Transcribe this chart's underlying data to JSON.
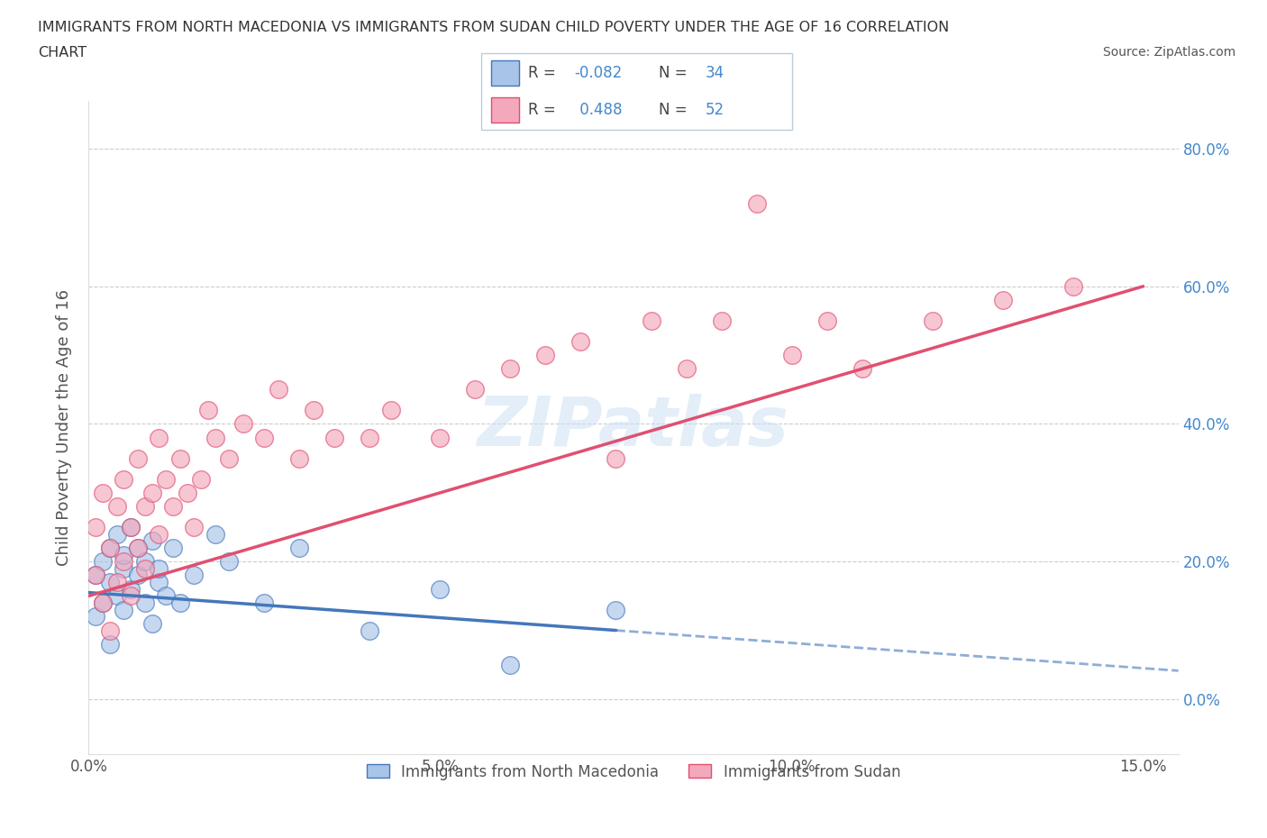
{
  "title_line1": "IMMIGRANTS FROM NORTH MACEDONIA VS IMMIGRANTS FROM SUDAN CHILD POVERTY UNDER THE AGE OF 16 CORRELATION",
  "title_line2": "CHART",
  "source": "Source: ZipAtlas.com",
  "ylabel": "Child Poverty Under the Age of 16",
  "legend_label1": "Immigrants from North Macedonia",
  "legend_label2": "Immigrants from Sudan",
  "R1": -0.082,
  "N1": 34,
  "R2": 0.488,
  "N2": 52,
  "color1": "#A8C4E8",
  "color2": "#F4A8BC",
  "trend1_color": "#4477BB",
  "trend2_color": "#E05070",
  "xlim_min": 0.0,
  "xlim_max": 0.155,
  "ylim_min": -0.08,
  "ylim_max": 0.87,
  "ytick_vals": [
    0.0,
    0.2,
    0.4,
    0.6,
    0.8
  ],
  "ytick_labels_right": [
    "0.0%",
    "20.0%",
    "40.0%",
    "60.0%",
    "80.0%"
  ],
  "xtick_vals": [
    0.0,
    0.05,
    0.1,
    0.15
  ],
  "xtick_labels": [
    "0.0%",
    "5.0%",
    "10.0%",
    "15.0%"
  ],
  "watermark": "ZIPatlas",
  "north_macedonia_x": [
    0.001,
    0.001,
    0.002,
    0.002,
    0.003,
    0.003,
    0.003,
    0.004,
    0.004,
    0.005,
    0.005,
    0.005,
    0.006,
    0.006,
    0.007,
    0.007,
    0.008,
    0.008,
    0.009,
    0.009,
    0.01,
    0.01,
    0.011,
    0.012,
    0.013,
    0.015,
    0.018,
    0.02,
    0.025,
    0.03,
    0.04,
    0.05,
    0.06,
    0.075
  ],
  "north_macedonia_y": [
    0.12,
    0.18,
    0.2,
    0.14,
    0.22,
    0.17,
    0.08,
    0.24,
    0.15,
    0.19,
    0.13,
    0.21,
    0.16,
    0.25,
    0.18,
    0.22,
    0.14,
    0.2,
    0.23,
    0.11,
    0.17,
    0.19,
    0.15,
    0.22,
    0.14,
    0.18,
    0.24,
    0.2,
    0.14,
    0.22,
    0.1,
    0.16,
    0.05,
    0.13
  ],
  "sudan_x": [
    0.001,
    0.001,
    0.002,
    0.002,
    0.003,
    0.003,
    0.004,
    0.004,
    0.005,
    0.005,
    0.006,
    0.006,
    0.007,
    0.007,
    0.008,
    0.008,
    0.009,
    0.01,
    0.01,
    0.011,
    0.012,
    0.013,
    0.014,
    0.015,
    0.016,
    0.017,
    0.018,
    0.02,
    0.022,
    0.025,
    0.027,
    0.03,
    0.032,
    0.035,
    0.04,
    0.043,
    0.05,
    0.055,
    0.06,
    0.065,
    0.07,
    0.075,
    0.08,
    0.085,
    0.09,
    0.095,
    0.1,
    0.105,
    0.11,
    0.12,
    0.13,
    0.14
  ],
  "sudan_y": [
    0.25,
    0.18,
    0.3,
    0.14,
    0.22,
    0.1,
    0.28,
    0.17,
    0.2,
    0.32,
    0.15,
    0.25,
    0.22,
    0.35,
    0.19,
    0.28,
    0.3,
    0.24,
    0.38,
    0.32,
    0.28,
    0.35,
    0.3,
    0.25,
    0.32,
    0.42,
    0.38,
    0.35,
    0.4,
    0.38,
    0.45,
    0.35,
    0.42,
    0.38,
    0.38,
    0.42,
    0.38,
    0.45,
    0.48,
    0.5,
    0.52,
    0.35,
    0.55,
    0.48,
    0.55,
    0.72,
    0.5,
    0.55,
    0.48,
    0.55,
    0.58,
    0.6
  ]
}
